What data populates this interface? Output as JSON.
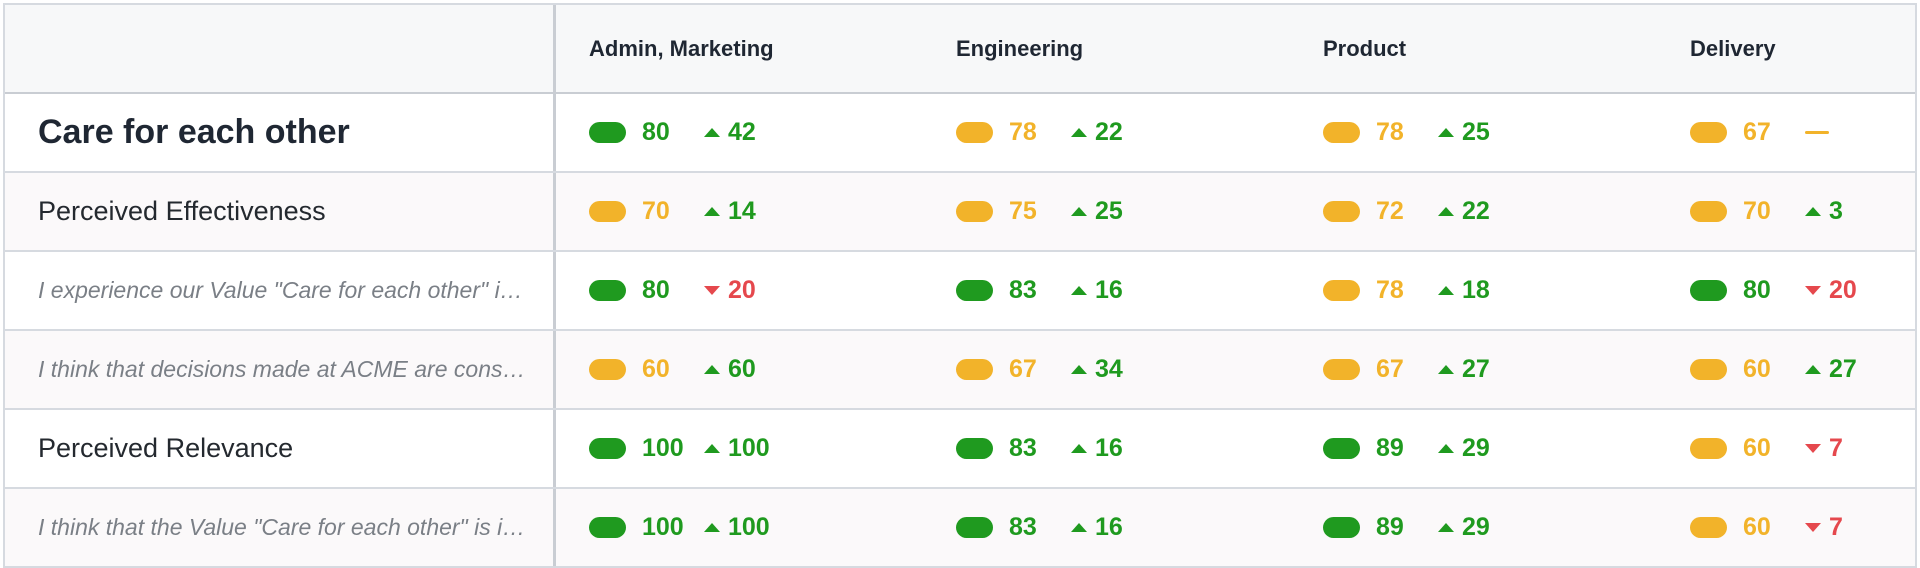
{
  "colors": {
    "green": "#1f9a1f",
    "yellow": "#f2b32a",
    "red": "#e5484d",
    "header_bg": "#f7f8f9",
    "alt_bg": "#fbf9fa"
  },
  "columns": [
    "Admin, Marketing",
    "Engineering",
    "Product",
    "Delivery"
  ],
  "rows": [
    {
      "label": "Care for each other",
      "kind": "title",
      "cells": [
        {
          "status": "green",
          "score": "80",
          "trend": "up",
          "delta": "42"
        },
        {
          "status": "yellow",
          "score": "78",
          "trend": "up",
          "delta": "22"
        },
        {
          "status": "yellow",
          "score": "78",
          "trend": "up",
          "delta": "25"
        },
        {
          "status": "yellow",
          "score": "67",
          "trend": "flat",
          "delta": ""
        }
      ]
    },
    {
      "label": "Perceived Effectiveness",
      "kind": "sub",
      "cells": [
        {
          "status": "yellow",
          "score": "70",
          "trend": "up",
          "delta": "14"
        },
        {
          "status": "yellow",
          "score": "75",
          "trend": "up",
          "delta": "25"
        },
        {
          "status": "yellow",
          "score": "72",
          "trend": "up",
          "delta": "22"
        },
        {
          "status": "yellow",
          "score": "70",
          "trend": "up",
          "delta": "3"
        }
      ]
    },
    {
      "label": "I experience our Value \"Care for each other\" in my daily work",
      "kind": "question",
      "cells": [
        {
          "status": "green",
          "score": "80",
          "trend": "down",
          "delta": "20"
        },
        {
          "status": "green",
          "score": "83",
          "trend": "up",
          "delta": "16"
        },
        {
          "status": "yellow",
          "score": "78",
          "trend": "up",
          "delta": "18"
        },
        {
          "status": "green",
          "score": "80",
          "trend": "down",
          "delta": "20"
        }
      ]
    },
    {
      "label": "I think that decisions made at ACME are consistent with our Value",
      "kind": "question",
      "cells": [
        {
          "status": "yellow",
          "score": "60",
          "trend": "up",
          "delta": "60"
        },
        {
          "status": "yellow",
          "score": "67",
          "trend": "up",
          "delta": "34"
        },
        {
          "status": "yellow",
          "score": "67",
          "trend": "up",
          "delta": "27"
        },
        {
          "status": "yellow",
          "score": "60",
          "trend": "up",
          "delta": "27"
        }
      ]
    },
    {
      "label": "Perceived Relevance",
      "kind": "sub",
      "cells": [
        {
          "status": "green",
          "score": "100",
          "trend": "up",
          "delta": "100"
        },
        {
          "status": "green",
          "score": "83",
          "trend": "up",
          "delta": "16"
        },
        {
          "status": "green",
          "score": "89",
          "trend": "up",
          "delta": "29"
        },
        {
          "status": "yellow",
          "score": "60",
          "trend": "down",
          "delta": "7"
        }
      ]
    },
    {
      "label": "I think that the Value \"Care for each other\" is important for ACME",
      "kind": "question",
      "cells": [
        {
          "status": "green",
          "score": "100",
          "trend": "up",
          "delta": "100"
        },
        {
          "status": "green",
          "score": "83",
          "trend": "up",
          "delta": "16"
        },
        {
          "status": "green",
          "score": "89",
          "trend": "up",
          "delta": "29"
        },
        {
          "status": "yellow",
          "score": "60",
          "trend": "down",
          "delta": "7"
        }
      ]
    }
  ]
}
